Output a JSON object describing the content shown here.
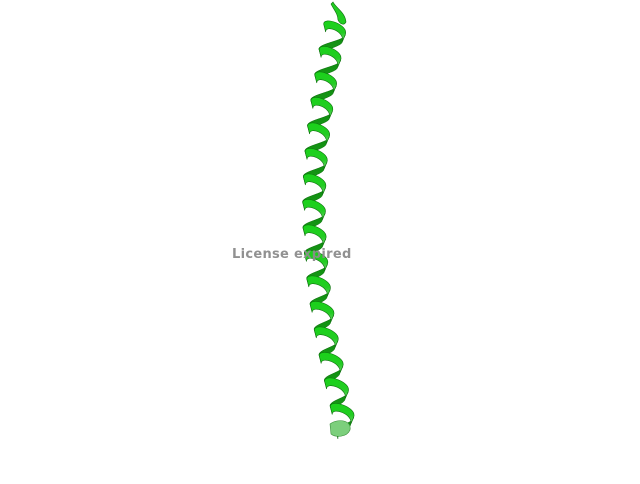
{
  "viewer": {
    "watermark_text": "License expired",
    "background_color": "#ffffff",
    "structure": {
      "representation": "cartoon",
      "secondary_structure": "alpha-helix",
      "color_top": "#22dd22",
      "color_bottom": "#66cc66"
    }
  }
}
